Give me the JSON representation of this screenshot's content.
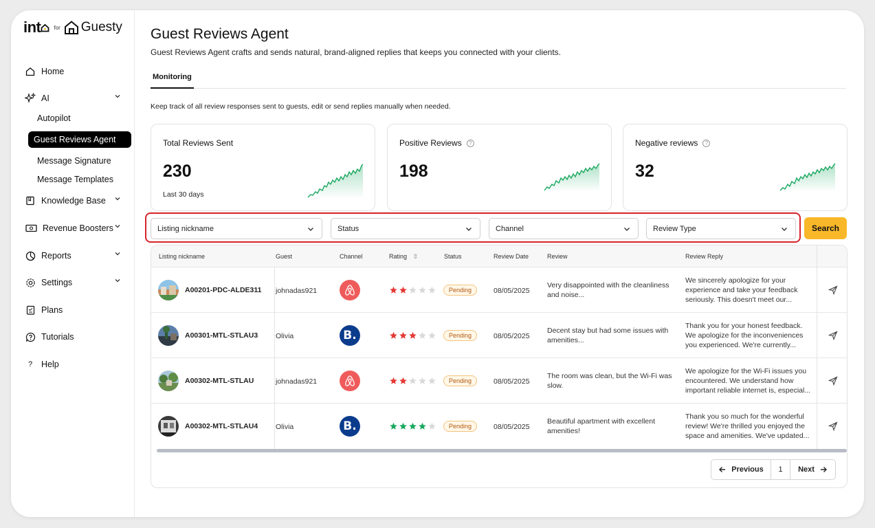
{
  "brand": {
    "logo_into": "int",
    "logo_for": "for",
    "logo_guesty": "Guesty"
  },
  "sidebar": {
    "home": "Home",
    "ai": "AI",
    "ai_items": [
      "Autopilot",
      "Guest Reviews Agent",
      "Message Signature",
      "Message Templates"
    ],
    "knowledge_base": "Knowledge Base",
    "revenue_boosters": "Revenue Boosters",
    "reports": "Reports",
    "settings": "Settings",
    "plans": "Plans",
    "tutorials": "Tutorials",
    "help": "Help",
    "help_glyph": "?"
  },
  "header": {
    "title": "Guest Reviews Agent",
    "subtitle": "Guest Reviews Agent crafts and sends natural, brand-aligned replies that keeps you connected with your clients."
  },
  "tabs": [
    "Monitoring"
  ],
  "description": "Keep track of all review responses sent to guests, edit or send replies manually when needed.",
  "cards": [
    {
      "title": "Total Reviews Sent",
      "value": "230",
      "note": "Last 30 days"
    },
    {
      "title": "Positive Reviews",
      "value": "198",
      "help": "?"
    },
    {
      "title": "Negative reviews",
      "value": "32",
      "help": "?"
    }
  ],
  "filters": {
    "listing": "Listing nickname",
    "status": "Status",
    "channel": "Channel",
    "review_type": "Review Type",
    "search": "Search"
  },
  "table": {
    "headers": [
      "Listing nickname",
      "Guest",
      "Channel",
      "Rating",
      "Status",
      "Review Date",
      "Review",
      "Review Reply"
    ],
    "sort_glyph": "⇕",
    "rows": [
      {
        "listing": "A00201-PDC-ALDE311",
        "guest": "johnadas921",
        "channel": "airbnb",
        "rating": 2,
        "status": "Pending",
        "date": "08/05/2025",
        "review": "Very disappointed with the cleanliness and noise...",
        "reply": "We sincerely apologize for your experience and take your feedback seriously. This doesn't meet our..."
      },
      {
        "listing": "A00301-MTL-STLAU3",
        "guest": "Olivia",
        "channel": "booking",
        "channel_label": "B.",
        "rating": 3,
        "status": "Pending",
        "date": "08/05/2025",
        "review": "Decent stay but had some issues with amenities...",
        "reply": "Thank you for your honest feedback. We apologize for the inconveniences you experienced. We're currently..."
      },
      {
        "listing": "A00302-MTL-STLAU",
        "guest": "johnadas921",
        "channel": "airbnb",
        "rating": 2,
        "status": "Pending",
        "date": "08/05/2025",
        "review": "The room was clean, but the Wi-Fi was slow.",
        "reply": "We apologize for the Wi-Fi issues you encountered. We understand how important reliable internet is, especial..."
      },
      {
        "listing": "A00302-MTL-STLAU4",
        "guest": "Olivia",
        "channel": "booking",
        "channel_label": "B.",
        "rating": 4,
        "status": "Pending",
        "date": "08/05/2025",
        "review": "Beautiful apartment with excellent amenities!",
        "reply": "Thank you so much for the wonderful review! We're thrilled you enjoyed the space and amenities. We've updated..."
      }
    ]
  },
  "pagination": {
    "previous": "Previous",
    "page": "1",
    "next": "Next"
  },
  "colors": {
    "accent": "#f9b82a",
    "highlight": "#d6232a",
    "star_low": "#e53935",
    "star_high": "#1aa860",
    "spark": "#1aa860"
  }
}
